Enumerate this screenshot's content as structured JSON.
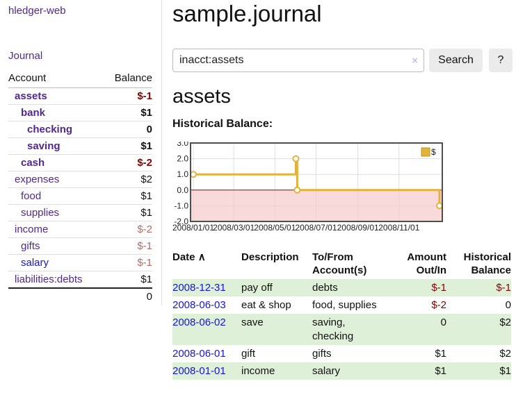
{
  "colors": {
    "purple": "#52288e",
    "blue": "#1414dd",
    "negative_bold": "#8b0000",
    "negative_soft": "#b46a6a",
    "stripe": "#dff0d8",
    "series_gold": "#e2b33c",
    "zero_line": "#a00000",
    "pink_region": "#f6caca"
  },
  "sidebar": {
    "app_title": "hledger-web",
    "journal_label": "Journal",
    "accounts_table": {
      "headers": [
        "Account",
        "Balance"
      ],
      "rows": [
        {
          "name": "assets",
          "depth": 1,
          "bold": true,
          "balance": "$-1",
          "negative": true,
          "link": "purple"
        },
        {
          "name": "bank",
          "depth": 2,
          "bold": true,
          "balance": "$1",
          "negative": false,
          "link": "purple"
        },
        {
          "name": "checking",
          "depth": 3,
          "bold": true,
          "balance": "0",
          "negative": false,
          "link": "purple"
        },
        {
          "name": "saving",
          "depth": 3,
          "bold": true,
          "balance": "$1",
          "negative": false,
          "link": "purple"
        },
        {
          "name": "cash",
          "depth": 2,
          "bold": true,
          "balance": "$-2",
          "negative": true,
          "link": "purple"
        },
        {
          "name": "expenses",
          "depth": 1,
          "bold": false,
          "balance": "$2",
          "negative": false,
          "link": "purple"
        },
        {
          "name": "food",
          "depth": 2,
          "bold": false,
          "balance": "$1",
          "negative": false,
          "link": "purple"
        },
        {
          "name": "supplies",
          "depth": 2,
          "bold": false,
          "balance": "$1",
          "negative": false,
          "link": "purple"
        },
        {
          "name": "income",
          "depth": 1,
          "bold": false,
          "balance": "$-2",
          "negative": true,
          "link": "purple"
        },
        {
          "name": "gifts",
          "depth": 2,
          "bold": false,
          "balance": "$-1",
          "negative": true,
          "link": "purple"
        },
        {
          "name": "salary",
          "depth": 2,
          "bold": false,
          "balance": "$-1",
          "negative": true,
          "link": "blue"
        },
        {
          "name": "liabilities:debts",
          "depth": 1,
          "bold": false,
          "balance": "$1",
          "negative": false,
          "link": "purple"
        }
      ],
      "total": "0"
    }
  },
  "main": {
    "title": "sample.journal",
    "search": {
      "value": "inacct:assets",
      "clear_icon": "×",
      "button_label": "Search",
      "help_label": "?"
    },
    "account_heading": "assets",
    "chart_label": "Historical Balance:",
    "chart_data": {
      "type": "line",
      "step": true,
      "title": "Historical Balance",
      "series": [
        {
          "name": "$",
          "points": [
            [
              "2008-01-01",
              1
            ],
            [
              "2008-06-01",
              2
            ],
            [
              "2008-06-03",
              0
            ],
            [
              "2008-12-31",
              -1
            ]
          ]
        }
      ],
      "ylim": [
        -2,
        3
      ],
      "yticks": [
        "3.0",
        "2.0",
        "1.0",
        "0.0",
        "-1.0",
        "-2.0"
      ],
      "ytick_values": [
        3,
        2,
        1,
        0,
        -1,
        -2
      ],
      "xticks": [
        "2008/01/01",
        "2008/03/01",
        "2008/05/01",
        "2008/07/01",
        "2008/09/01",
        "2008/11/01"
      ],
      "xtick_dates": [
        "2008-01-01",
        "2008-03-01",
        "2008-05-01",
        "2008-07-01",
        "2008-09-01",
        "2008-11-01"
      ],
      "x_range": [
        "2008-01-01",
        "2008-12-31"
      ],
      "grid": true,
      "legend_position": "top-right",
      "negative_region_shaded": true
    },
    "register_table": {
      "headers": [
        {
          "label": "Date",
          "sort_icon": "∧",
          "align": "left"
        },
        {
          "label": "Description",
          "align": "left"
        },
        {
          "label": "To/From Account(s)",
          "align": "left"
        },
        {
          "label": "Amount Out/In",
          "align": "right"
        },
        {
          "label": "Historical Balance",
          "align": "right"
        }
      ],
      "rows": [
        {
          "date": "2008-12-31",
          "description": "pay off",
          "accounts": "debts",
          "amount": "$-1",
          "amount_negative": true,
          "balance": "$-1",
          "balance_negative": true
        },
        {
          "date": "2008-06-03",
          "description": "eat & shop",
          "accounts": "food, supplies",
          "amount": "$-2",
          "amount_negative": true,
          "balance": "0",
          "balance_negative": false
        },
        {
          "date": "2008-06-02",
          "description": "save",
          "accounts": "saving,\nchecking",
          "amount": "0",
          "amount_negative": false,
          "balance": "$2",
          "balance_negative": false
        },
        {
          "date": "2008-06-01",
          "description": "gift",
          "accounts": "gifts",
          "amount": "$1",
          "amount_negative": false,
          "balance": "$2",
          "balance_negative": false
        },
        {
          "date": "2008-01-01",
          "description": "income",
          "accounts": "salary",
          "amount": "$1",
          "amount_negative": false,
          "balance": "$1",
          "balance_negative": false
        }
      ]
    }
  }
}
